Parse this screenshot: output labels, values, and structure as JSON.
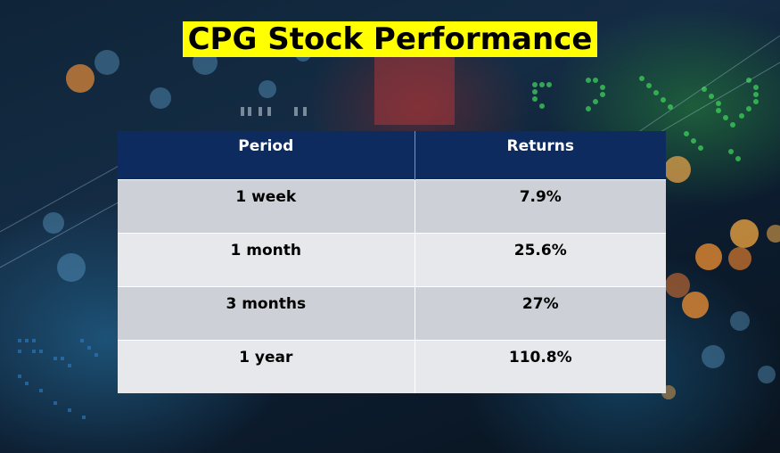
{
  "title": "CPG Stock Performance",
  "table": {
    "headers": [
      "Period",
      "Returns"
    ],
    "rows": [
      {
        "period": "1 week",
        "returns": "7.9%"
      },
      {
        "period": "1 month",
        "returns": "25.6%"
      },
      {
        "period": "3 months",
        "returns": "27%"
      },
      {
        "period": "1 year",
        "returns": "110.8%"
      }
    ]
  },
  "colors": {
    "title_highlight": "#ffff00",
    "header_bg": "#0d2b5e",
    "row_odd": "#cdd0d6",
    "row_even": "#e6e8ec"
  }
}
